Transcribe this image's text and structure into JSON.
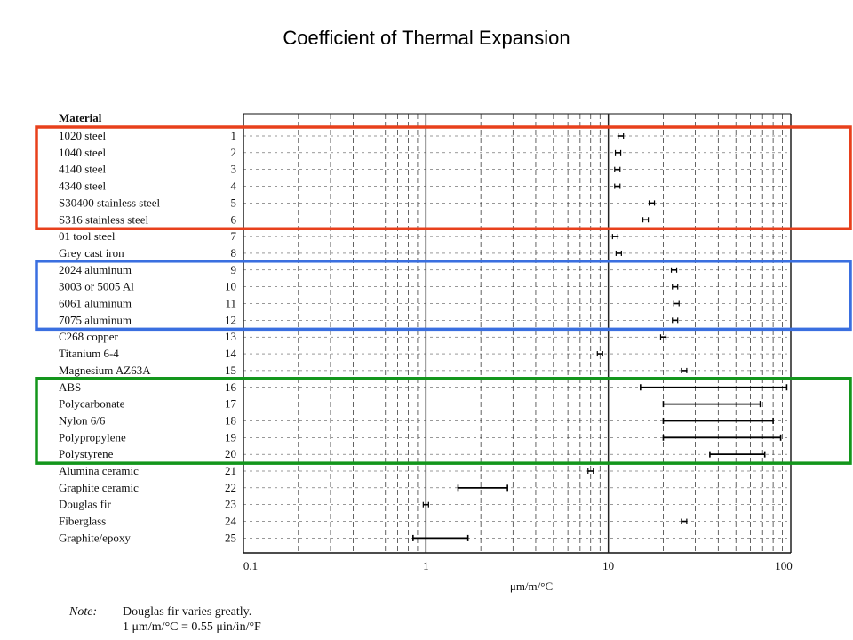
{
  "slide": {
    "title": "Coefficient of Thermal Expansion",
    "note_label": "Note:",
    "note_lines": [
      "Douglas fir varies greatly.",
      "1 μm/m/°C = 0.55 μin/in/°F"
    ],
    "highlight_colors": {
      "steels": "#e8401c",
      "aluminums": "#3a6fe0",
      "polymers": "#13961c"
    }
  },
  "chart_data": {
    "type": "range",
    "title": "Coefficient of Thermal Expansion",
    "header": "Material",
    "xlabel": "μm/m/°C",
    "xscale": "log",
    "xlim": [
      0.1,
      100
    ],
    "xticks": [
      "0.1",
      "1",
      "10",
      "100"
    ],
    "grid": true,
    "highlight_groups": [
      {
        "name": "steels",
        "rows": [
          1,
          6
        ]
      },
      {
        "name": "aluminums",
        "rows": [
          9,
          12
        ]
      },
      {
        "name": "polymers",
        "rows": [
          16,
          20
        ]
      }
    ],
    "materials": [
      {
        "n": 1,
        "name": "1020 steel",
        "min": 11.7,
        "max": 11.7
      },
      {
        "n": 2,
        "name": "1040 steel",
        "min": 11.3,
        "max": 11.3
      },
      {
        "n": 3,
        "name": "4140 steel",
        "min": 11.2,
        "max": 11.2
      },
      {
        "n": 4,
        "name": "4340 steel",
        "min": 11.2,
        "max": 11.2
      },
      {
        "n": 5,
        "name": "S30400 stainless steel",
        "min": 17.3,
        "max": 17.3
      },
      {
        "n": 6,
        "name": "S316 stainless steel",
        "min": 16.0,
        "max": 16.0
      },
      {
        "n": 7,
        "name": "01 tool steel",
        "min": 10.9,
        "max": 10.9
      },
      {
        "n": 8,
        "name": "Grey cast iron",
        "min": 11.4,
        "max": 11.4
      },
      {
        "n": 9,
        "name": "2024 aluminum",
        "min": 22.9,
        "max": 22.9
      },
      {
        "n": 10,
        "name": "3003 or 5005 Al",
        "min": 23.2,
        "max": 23.2
      },
      {
        "n": 11,
        "name": "6061 aluminum",
        "min": 23.6,
        "max": 23.6
      },
      {
        "n": 12,
        "name": "7075 aluminum",
        "min": 23.2,
        "max": 23.2
      },
      {
        "n": 13,
        "name": "C268 copper",
        "min": 20.0,
        "max": 20.0
      },
      {
        "n": 14,
        "name": "Titanium 6-4",
        "min": 9.0,
        "max": 9.0
      },
      {
        "n": 15,
        "name": "Magnesium AZ63A",
        "min": 26.0,
        "max": 26.0
      },
      {
        "n": 16,
        "name": "ABS",
        "min": 15.0,
        "max": 95.0
      },
      {
        "n": 17,
        "name": "Polycarbonate",
        "min": 20.0,
        "max": 68.0
      },
      {
        "n": 18,
        "name": "Nylon 6/6",
        "min": 20.0,
        "max": 80.0
      },
      {
        "n": 19,
        "name": "Polypropylene",
        "min": 20.0,
        "max": 88.0
      },
      {
        "n": 20,
        "name": "Polystyrene",
        "min": 36.0,
        "max": 72.0
      },
      {
        "n": 21,
        "name": "Alumina ceramic",
        "min": 8.0,
        "max": 8.0
      },
      {
        "n": 22,
        "name": "Graphite ceramic",
        "min": 1.5,
        "max": 2.8
      },
      {
        "n": 23,
        "name": "Douglas fir",
        "min": 1.0,
        "max": 1.0
      },
      {
        "n": 24,
        "name": "Fiberglass",
        "min": 26.0,
        "max": 26.0
      },
      {
        "n": 25,
        "name": "Graphite/epoxy",
        "min": 0.85,
        "max": 1.7
      }
    ]
  }
}
